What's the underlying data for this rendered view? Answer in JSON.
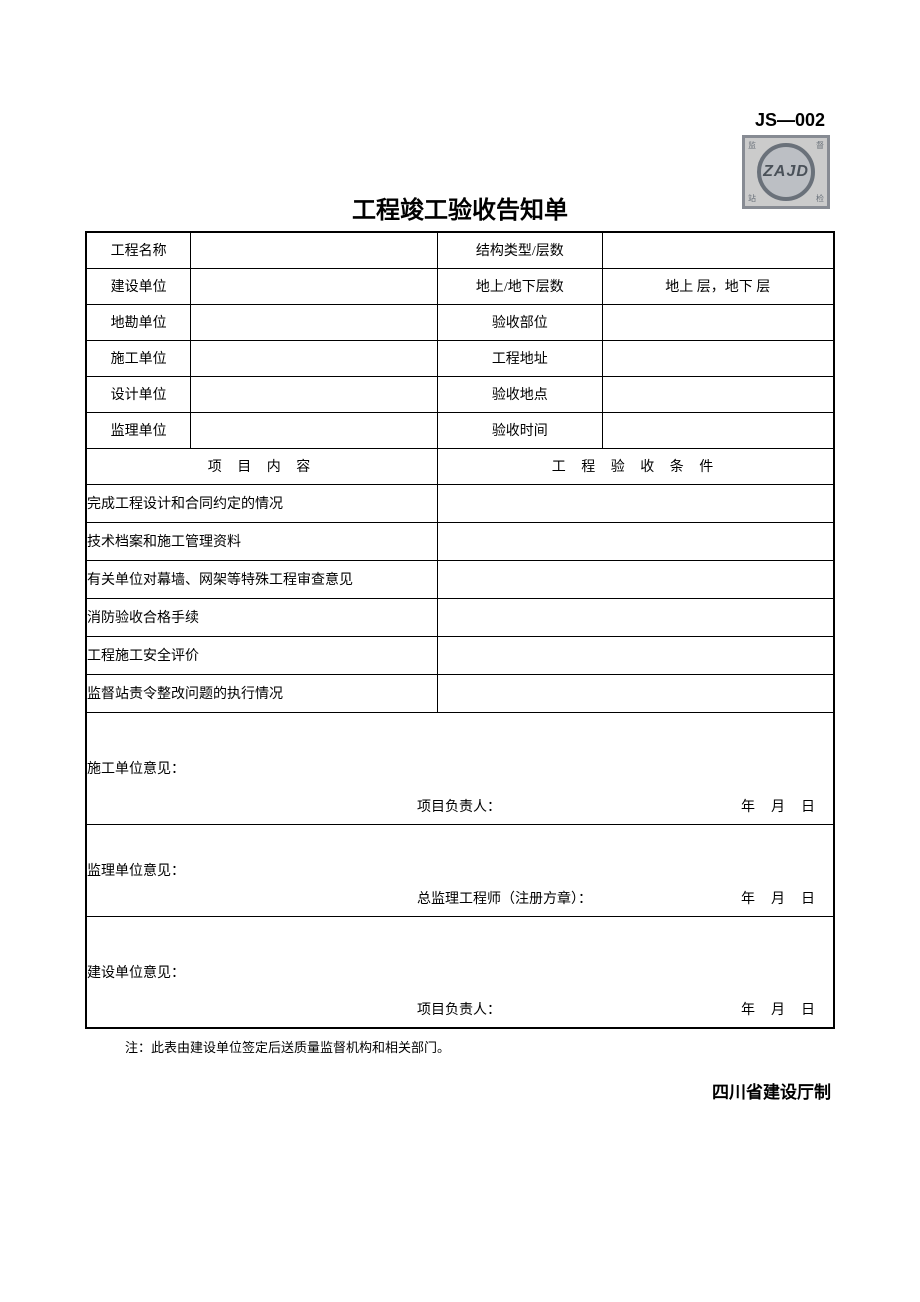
{
  "form_code": "JS—002",
  "stamp": {
    "text": "ZAJD",
    "corners": [
      "监",
      "督",
      "站",
      "检"
    ]
  },
  "title": "工程竣工验收告知单",
  "info_rows": [
    {
      "label_left": "工程名称",
      "value_left": "",
      "label_right": "结构类型/层数",
      "value_right": ""
    },
    {
      "label_left": "建设单位",
      "value_left": "",
      "label_right": "地上/地下层数",
      "value_right": "地上  层，地下 层"
    },
    {
      "label_left": "地勘单位",
      "value_left": "",
      "label_right": "验收部位",
      "value_right": ""
    },
    {
      "label_left": "施工单位",
      "value_left": "",
      "label_right": "工程地址",
      "value_right": ""
    },
    {
      "label_left": "设计单位",
      "value_left": "",
      "label_right": "验收地点",
      "value_right": ""
    },
    {
      "label_left": "监理单位",
      "value_left": "",
      "label_right": "验收时间",
      "value_right": ""
    }
  ],
  "section_headers": {
    "left": "项 目 内 容",
    "right": "工 程 验 收 条 件"
  },
  "items": [
    "完成工程设计和合同约定的情况",
    "技术档案和施工管理资料",
    "有关单位对幕墙、网架等特殊工程审查意见",
    "消防验收合格手续",
    "工程施工安全评价",
    "监督站责令整改问题的执行情况"
  ],
  "opinions": [
    {
      "label": "施工单位意见：",
      "role": "项目负责人：",
      "date_parts": [
        "年",
        "月",
        "日"
      ],
      "class": "construction"
    },
    {
      "label": "监理单位意见：",
      "role": "总监理工程师（注册方章）：",
      "date_parts": [
        "年",
        "月",
        "日"
      ],
      "class": "supervision"
    },
    {
      "label": "建设单位意见：",
      "role": "项目负责人：",
      "date_parts": [
        "年",
        "月",
        "日"
      ],
      "class": "builder"
    }
  ],
  "note": "注：此表由建设单位签定后送质量监督机构和相关部门。",
  "footer": "四川省建设厅制",
  "layout": {
    "col_widths": {
      "c1": "14%",
      "c2": "33%",
      "c3": "22%",
      "c4": "31%"
    },
    "border_color": "#000000",
    "outer_border_width": 2,
    "inner_border_width": 1,
    "font_size_body": 14,
    "font_size_title": 24,
    "font_size_code": 18
  }
}
